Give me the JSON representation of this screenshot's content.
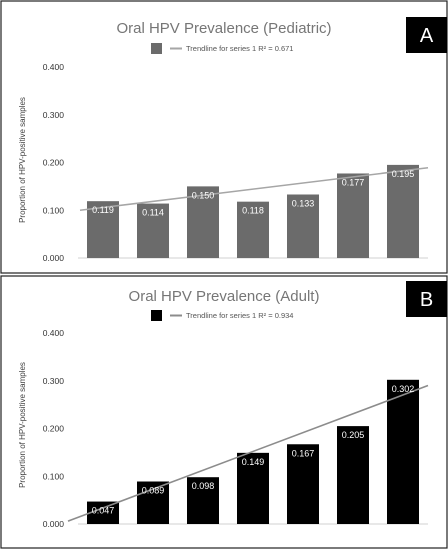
{
  "chart_data": [
    {
      "type": "bar",
      "panel": "A",
      "title": "Oral HPV Prevalence (Pediatric)",
      "ylabel": "Proportion of HPV-positive samples",
      "xlabel": "",
      "categories": [
        "",
        "",
        "",
        "",
        "",
        "",
        ""
      ],
      "series": [
        {
          "name": "",
          "values": [
            0.119,
            0.114,
            0.15,
            0.118,
            0.133,
            0.177,
            0.195
          ],
          "color": "#6b6b6b"
        }
      ],
      "value_labels": [
        "0.119",
        "0.114",
        "0.150",
        "0.118",
        "0.133",
        "0.177",
        "0.195"
      ],
      "trendline": {
        "label": "Trendline for series 1 R² = 0.671",
        "start": 0.1,
        "end": 0.189,
        "color": "#a6a6a6"
      },
      "yticks": [
        "0.000",
        "0.100",
        "0.200",
        "0.300",
        "0.400"
      ],
      "ylim": [
        0,
        0.4
      ],
      "grid": false,
      "legend": "top"
    },
    {
      "type": "bar",
      "panel": "B",
      "title": "Oral HPV Prevalence (Adult)",
      "ylabel": "Proportion of HPV-positive samples",
      "xlabel": "",
      "categories": [
        "",
        "",
        "",
        "",
        "",
        "",
        ""
      ],
      "series": [
        {
          "name": "",
          "values": [
            0.047,
            0.089,
            0.098,
            0.149,
            0.167,
            0.205,
            0.302
          ],
          "color": "#000000"
        }
      ],
      "value_labels": [
        "0.047",
        "0.089",
        "0.098",
        "0.149",
        "0.167",
        "0.205",
        "0.302"
      ],
      "trendline": {
        "label": "Trendline for series 1 R² = 0.934",
        "start": 0.006,
        "end": 0.29,
        "color": "#8c8c8c"
      },
      "yticks": [
        "0.000",
        "0.100",
        "0.200",
        "0.300",
        "0.400"
      ],
      "ylim": [
        0,
        0.4
      ],
      "grid": false,
      "legend": "top"
    }
  ]
}
